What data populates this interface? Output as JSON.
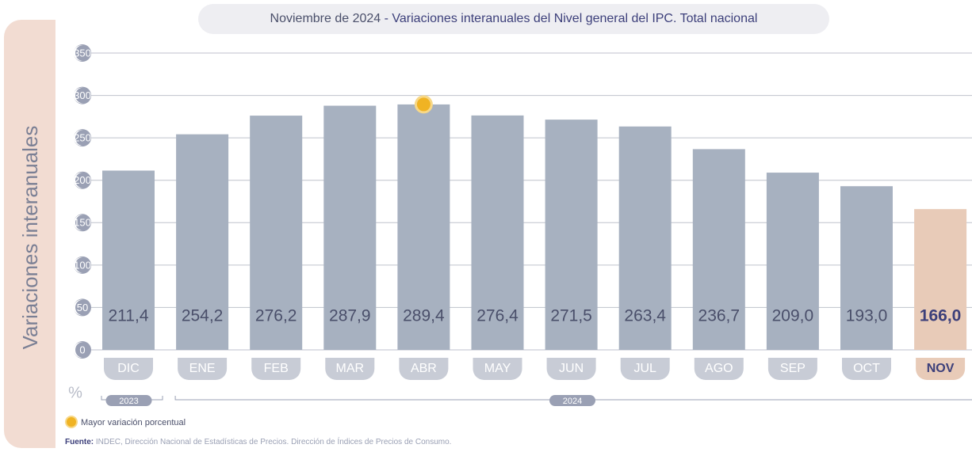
{
  "chart_data": {
    "type": "bar",
    "title_prefix": "Noviembre de 2024",
    "title": "- Variaciones interanuales del Nivel general del IPC. Total nacional",
    "y_label": "Variaciones interanuales",
    "y_unit": "%",
    "categories": [
      "DIC",
      "ENE",
      "FEB",
      "MAR",
      "ABR",
      "MAY",
      "JUN",
      "JUL",
      "AGO",
      "SEP",
      "OCT",
      "NOV"
    ],
    "values": [
      211.4,
      254.2,
      276.2,
      287.9,
      289.4,
      276.4,
      271.5,
      263.4,
      236.7,
      209.0,
      193.0,
      166.0
    ],
    "value_labels": [
      "211,4",
      "254,2",
      "276,2",
      "287,9",
      "289,4",
      "276,4",
      "271,5",
      "263,4",
      "236,7",
      "209,0",
      "193,0",
      "166,0"
    ],
    "color": "#a7b1c0",
    "highlight_index": 11,
    "highlight_color": "#e8cbb8",
    "groups": [
      {
        "label": "2023",
        "start": 0,
        "end": 0
      },
      {
        "label": "2024",
        "start": 1,
        "end": 11
      }
    ],
    "max_marker": {
      "label": "Mayor variación porcentual",
      "color": "#f0b323"
    },
    "ylim": [
      0,
      350
    ],
    "yticks": [
      0,
      50,
      100,
      150,
      200,
      250,
      300,
      350
    ],
    "grid": true,
    "source_label": "Fuente:",
    "source": "INDEC, Dirección Nacional de Estadísticas de Precios. Dirección de Índices de Precios de Consumo."
  }
}
